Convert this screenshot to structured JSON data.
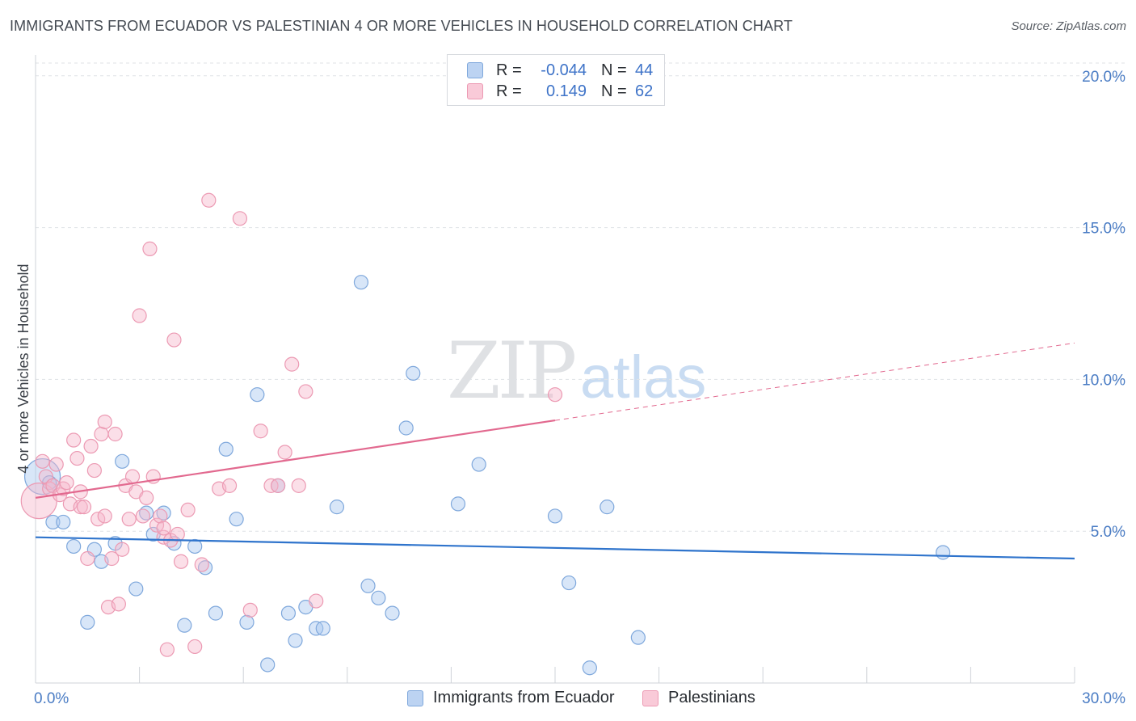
{
  "title": "IMMIGRANTS FROM ECUADOR VS PALESTINIAN 4 OR MORE VEHICLES IN HOUSEHOLD CORRELATION CHART",
  "source": "Source: ZipAtlas.com",
  "watermark": {
    "zip": "ZIP",
    "atlas": "atlas"
  },
  "legend": {
    "r_label": "R =",
    "n_label": "N =",
    "rows": [
      {
        "r": "-0.044",
        "n": "44"
      },
      {
        "r": "0.149",
        "n": "62"
      }
    ]
  },
  "colors": {
    "ecuador_fill": "#a9c8ef",
    "ecuador_stroke": "#7fa8dc",
    "ecuador_line": "#2f74cc",
    "pal_fill": "#f6b8cb",
    "pal_stroke": "#ec9ab3",
    "pal_line": "#e2698f"
  },
  "chart_data": {
    "type": "scatter",
    "title": "IMMIGRANTS FROM ECUADOR VS PALESTINIAN 4 OR MORE VEHICLES IN HOUSEHOLD CORRELATION CHART",
    "xlabel": "",
    "ylabel": "4 or more Vehicles in Household",
    "xlim": [
      0,
      30
    ],
    "ylim": [
      0,
      20.5
    ],
    "x_tick_labels": [
      "0.0%",
      "30.0%"
    ],
    "y_ticks": [
      5,
      10,
      15,
      20
    ],
    "y_tick_labels": [
      "5.0%",
      "10.0%",
      "15.0%",
      "20.0%"
    ],
    "grid": true,
    "legend_position": "bottom",
    "series": [
      {
        "name": "Immigrants from Ecuador",
        "r": -0.044,
        "n": 44,
        "trend": {
          "x0": 0,
          "y0": 4.8,
          "x1": 30,
          "y1": 4.1,
          "solid_until": 30
        },
        "points": [
          {
            "x": 0.2,
            "y": 6.8,
            "big": true
          },
          {
            "x": 0.4,
            "y": 6.6
          },
          {
            "x": 0.5,
            "y": 5.3
          },
          {
            "x": 0.8,
            "y": 5.3
          },
          {
            "x": 1.1,
            "y": 4.5
          },
          {
            "x": 1.5,
            "y": 2.0
          },
          {
            "x": 1.7,
            "y": 4.4
          },
          {
            "x": 1.9,
            "y": 4.0
          },
          {
            "x": 2.3,
            "y": 4.6
          },
          {
            "x": 2.5,
            "y": 7.3
          },
          {
            "x": 2.9,
            "y": 3.1
          },
          {
            "x": 3.2,
            "y": 5.6
          },
          {
            "x": 3.4,
            "y": 4.9
          },
          {
            "x": 3.7,
            "y": 5.6
          },
          {
            "x": 4.0,
            "y": 4.6
          },
          {
            "x": 4.3,
            "y": 1.9
          },
          {
            "x": 4.6,
            "y": 4.5
          },
          {
            "x": 4.9,
            "y": 3.8
          },
          {
            "x": 5.2,
            "y": 2.3
          },
          {
            "x": 5.5,
            "y": 7.7
          },
          {
            "x": 5.8,
            "y": 5.4
          },
          {
            "x": 6.1,
            "y": 2.0
          },
          {
            "x": 6.4,
            "y": 9.5
          },
          {
            "x": 6.7,
            "y": 0.6
          },
          {
            "x": 7.0,
            "y": 6.5
          },
          {
            "x": 7.3,
            "y": 2.3
          },
          {
            "x": 7.5,
            "y": 1.4
          },
          {
            "x": 7.8,
            "y": 2.5
          },
          {
            "x": 8.1,
            "y": 1.8
          },
          {
            "x": 8.3,
            "y": 1.8
          },
          {
            "x": 8.7,
            "y": 5.8
          },
          {
            "x": 9.4,
            "y": 13.2
          },
          {
            "x": 9.6,
            "y": 3.2
          },
          {
            "x": 9.9,
            "y": 2.8
          },
          {
            "x": 10.3,
            "y": 2.3
          },
          {
            "x": 10.7,
            "y": 8.4
          },
          {
            "x": 10.9,
            "y": 10.2
          },
          {
            "x": 12.2,
            "y": 5.9
          },
          {
            "x": 12.8,
            "y": 7.2
          },
          {
            "x": 15.0,
            "y": 5.5
          },
          {
            "x": 15.4,
            "y": 3.3
          },
          {
            "x": 16.0,
            "y": 0.5
          },
          {
            "x": 16.5,
            "y": 5.8
          },
          {
            "x": 17.4,
            "y": 1.5
          },
          {
            "x": 26.2,
            "y": 4.3
          }
        ]
      },
      {
        "name": "Palestinians",
        "r": 0.149,
        "n": 62,
        "trend": {
          "x0": 0,
          "y0": 6.1,
          "x1": 30,
          "y1": 11.2,
          "solid_until": 15
        },
        "points": [
          {
            "x": 0.1,
            "y": 6.0,
            "big": true
          },
          {
            "x": 0.2,
            "y": 7.3
          },
          {
            "x": 0.3,
            "y": 6.8
          },
          {
            "x": 0.4,
            "y": 6.4
          },
          {
            "x": 0.5,
            "y": 6.5
          },
          {
            "x": 0.6,
            "y": 7.2
          },
          {
            "x": 0.7,
            "y": 6.2
          },
          {
            "x": 0.8,
            "y": 6.4
          },
          {
            "x": 0.9,
            "y": 6.6
          },
          {
            "x": 1.0,
            "y": 5.9
          },
          {
            "x": 1.1,
            "y": 8.0
          },
          {
            "x": 1.2,
            "y": 7.4
          },
          {
            "x": 1.3,
            "y": 5.8
          },
          {
            "x": 1.4,
            "y": 5.8
          },
          {
            "x": 1.5,
            "y": 4.1
          },
          {
            "x": 1.6,
            "y": 7.8
          },
          {
            "x": 1.7,
            "y": 7.0
          },
          {
            "x": 1.8,
            "y": 5.4
          },
          {
            "x": 1.9,
            "y": 8.2
          },
          {
            "x": 2.0,
            "y": 8.6
          },
          {
            "x": 2.1,
            "y": 2.5
          },
          {
            "x": 2.2,
            "y": 4.1
          },
          {
            "x": 2.3,
            "y": 8.2
          },
          {
            "x": 2.4,
            "y": 2.6
          },
          {
            "x": 2.5,
            "y": 4.4
          },
          {
            "x": 2.6,
            "y": 6.5
          },
          {
            "x": 2.7,
            "y": 5.4
          },
          {
            "x": 2.8,
            "y": 6.8
          },
          {
            "x": 2.9,
            "y": 6.3
          },
          {
            "x": 3.0,
            "y": 12.1
          },
          {
            "x": 3.1,
            "y": 5.5
          },
          {
            "x": 3.2,
            "y": 6.1
          },
          {
            "x": 3.3,
            "y": 14.3
          },
          {
            "x": 3.4,
            "y": 6.8
          },
          {
            "x": 3.5,
            "y": 5.2
          },
          {
            "x": 3.6,
            "y": 5.5
          },
          {
            "x": 3.7,
            "y": 4.8
          },
          {
            "x": 3.8,
            "y": 1.1
          },
          {
            "x": 3.9,
            "y": 4.7
          },
          {
            "x": 4.0,
            "y": 11.3
          },
          {
            "x": 4.2,
            "y": 4.0
          },
          {
            "x": 4.4,
            "y": 5.7
          },
          {
            "x": 4.6,
            "y": 1.2
          },
          {
            "x": 4.8,
            "y": 3.9
          },
          {
            "x": 5.0,
            "y": 15.9
          },
          {
            "x": 5.3,
            "y": 6.4
          },
          {
            "x": 5.6,
            "y": 6.5
          },
          {
            "x": 5.9,
            "y": 15.3
          },
          {
            "x": 6.2,
            "y": 2.4
          },
          {
            "x": 6.5,
            "y": 8.3
          },
          {
            "x": 6.8,
            "y": 6.5
          },
          {
            "x": 7.0,
            "y": 6.5
          },
          {
            "x": 7.2,
            "y": 7.6
          },
          {
            "x": 7.4,
            "y": 10.5
          },
          {
            "x": 7.6,
            "y": 6.5
          },
          {
            "x": 7.8,
            "y": 9.6
          },
          {
            "x": 8.1,
            "y": 2.7
          },
          {
            "x": 3.7,
            "y": 5.1
          },
          {
            "x": 4.1,
            "y": 4.9
          },
          {
            "x": 1.3,
            "y": 6.3
          },
          {
            "x": 2.0,
            "y": 5.5
          },
          {
            "x": 15.0,
            "y": 9.5
          }
        ]
      }
    ]
  }
}
